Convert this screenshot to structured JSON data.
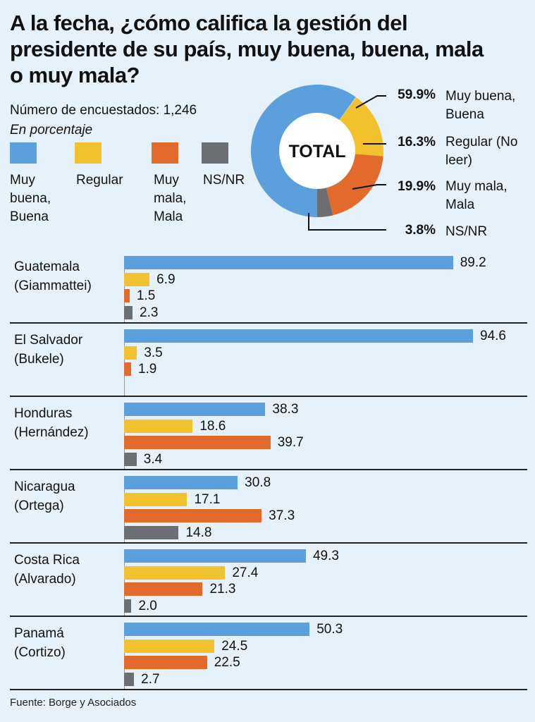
{
  "title": "A la fecha, ¿cómo califica la gestión del presidente de su país, muy buena, buena, mala o muy mala?",
  "respondents": "Número de encuestados: 1,246",
  "unit": "En porcentaje",
  "source": "Fuente: Borge y Asociados",
  "colors": {
    "good": "#5b9fdc",
    "regular": "#f2c22e",
    "bad": "#e16a2c",
    "nsnr": "#6d6e71"
  },
  "legend": [
    {
      "label": "Muy buena, Buena",
      "color": "#5b9fdc"
    },
    {
      "label": "Regular",
      "color": "#f2c22e"
    },
    {
      "label": "Muy mala, Mala",
      "color": "#e16a2c"
    },
    {
      "label": "NS/NR",
      "color": "#6d6e71"
    }
  ],
  "total": {
    "center_label": "TOTAL",
    "slices": [
      {
        "pct_label": "59.9%",
        "value": 59.9,
        "label": "Muy buena, Buena",
        "color": "#5b9fdc"
      },
      {
        "pct_label": "16.3%",
        "value": 16.3,
        "label": "Regular (No leer)",
        "color": "#f2c22e"
      },
      {
        "pct_label": "19.9%",
        "value": 19.9,
        "label": "Muy mala, Mala",
        "color": "#e16a2c"
      },
      {
        "pct_label": "3.8%",
        "value": 3.8,
        "label": "NS/NR",
        "color": "#6d6e71"
      }
    ]
  },
  "chart_data": {
    "type": "bar",
    "orientation": "horizontal",
    "title": "A la fecha, ¿cómo califica la gestión del presidente de su país, muy buena, buena, mala o muy mala?",
    "unit": "En porcentaje",
    "categories": [
      "Guatemala (Giammattei)",
      "El Salvador (Bukele)",
      "Honduras (Hernández)",
      "Nicaragua (Ortega)",
      "Costa Rica (Alvarado)",
      "Panamá (Cortizo)"
    ],
    "series": [
      {
        "name": "Muy buena, Buena",
        "color": "#5b9fdc",
        "values": [
          89.2,
          94.6,
          38.3,
          30.8,
          49.3,
          50.3
        ],
        "labels": [
          "89.2",
          "94.6",
          "38.3",
          "30.8",
          "49.3",
          "50.3"
        ]
      },
      {
        "name": "Regular",
        "color": "#f2c22e",
        "values": [
          6.9,
          3.5,
          18.6,
          17.1,
          27.4,
          24.5
        ],
        "labels": [
          "6.9",
          "3.5",
          "18.6",
          "17.1",
          "27.4",
          "24.5"
        ]
      },
      {
        "name": "Muy mala, Mala",
        "color": "#e16a2c",
        "values": [
          1.5,
          1.9,
          39.7,
          37.3,
          21.3,
          22.5
        ],
        "labels": [
          "1.5",
          "1.9",
          "39.7",
          "37.3",
          "21.3",
          "22.5"
        ]
      },
      {
        "name": "NS/NR",
        "color": "#6d6e71",
        "values": [
          2.3,
          null,
          3.4,
          14.8,
          2.0,
          2.7
        ],
        "labels": [
          "2.3",
          "",
          "3.4",
          "14.8",
          "2.0",
          "2.7"
        ]
      }
    ],
    "countries": [
      {
        "name": "Guatemala",
        "president": "(Giammattei)"
      },
      {
        "name": "El Salvador",
        "president": "(Bukele)"
      },
      {
        "name": "Honduras",
        "president": "(Hernández)"
      },
      {
        "name": "Nicaragua",
        "president": "(Ortega)"
      },
      {
        "name": "Costa Rica",
        "president": "(Alvarado)"
      },
      {
        "name": "Panamá",
        "president": "(Cortizo)"
      }
    ],
    "xlim": [
      0,
      100
    ],
    "grid": false,
    "legend_position": "top-left"
  }
}
